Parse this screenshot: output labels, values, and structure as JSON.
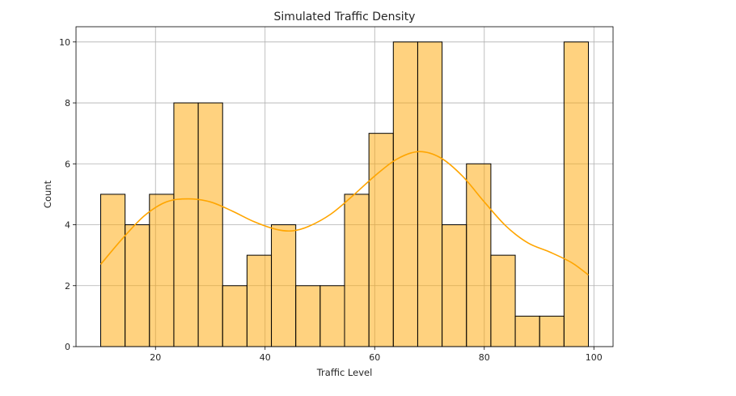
{
  "chart_data": {
    "type": "bar",
    "title": "Simulated Traffic Density",
    "xlabel": "Traffic Level",
    "ylabel": "Count",
    "xlim": [
      5.5,
      103.5
    ],
    "ylim": [
      0,
      10.5
    ],
    "xticks": [
      20,
      40,
      60,
      80,
      100
    ],
    "yticks": [
      0,
      2,
      4,
      6,
      8,
      10
    ],
    "grid": true,
    "bar_color": "#ffa500",
    "bar_fill_opacity": 0.5,
    "bar_edge_color": "#000000",
    "kde_color": "#ffa500",
    "bins": [
      {
        "x0": 10.0,
        "x1": 14.45,
        "count": 5
      },
      {
        "x0": 14.45,
        "x1": 18.9,
        "count": 4
      },
      {
        "x0": 18.9,
        "x1": 23.35,
        "count": 5
      },
      {
        "x0": 23.35,
        "x1": 27.8,
        "count": 8
      },
      {
        "x0": 27.8,
        "x1": 32.25,
        "count": 8
      },
      {
        "x0": 32.25,
        "x1": 36.7,
        "count": 2
      },
      {
        "x0": 36.7,
        "x1": 41.15,
        "count": 3
      },
      {
        "x0": 41.15,
        "x1": 45.6,
        "count": 4
      },
      {
        "x0": 45.6,
        "x1": 50.05,
        "count": 2
      },
      {
        "x0": 50.05,
        "x1": 54.5,
        "count": 2
      },
      {
        "x0": 54.5,
        "x1": 58.95,
        "count": 5
      },
      {
        "x0": 58.95,
        "x1": 63.4,
        "count": 7
      },
      {
        "x0": 63.4,
        "x1": 67.85,
        "count": 10
      },
      {
        "x0": 67.85,
        "x1": 72.3,
        "count": 10
      },
      {
        "x0": 72.3,
        "x1": 76.75,
        "count": 4
      },
      {
        "x0": 76.75,
        "x1": 81.2,
        "count": 6
      },
      {
        "x0": 81.2,
        "x1": 85.65,
        "count": 3
      },
      {
        "x0": 85.65,
        "x1": 90.1,
        "count": 1
      },
      {
        "x0": 90.1,
        "x1": 94.55,
        "count": 1
      },
      {
        "x0": 94.55,
        "x1": 99.0,
        "count": 10
      }
    ],
    "kde_curve": [
      [
        10,
        2.7
      ],
      [
        14,
        3.55
      ],
      [
        18,
        4.3
      ],
      [
        22,
        4.75
      ],
      [
        26,
        4.85
      ],
      [
        30,
        4.75
      ],
      [
        34,
        4.45
      ],
      [
        38,
        4.1
      ],
      [
        42,
        3.85
      ],
      [
        45,
        3.8
      ],
      [
        48,
        3.95
      ],
      [
        52,
        4.35
      ],
      [
        56,
        4.95
      ],
      [
        60,
        5.6
      ],
      [
        64,
        6.15
      ],
      [
        68,
        6.4
      ],
      [
        72,
        6.2
      ],
      [
        76,
        5.6
      ],
      [
        80,
        4.75
      ],
      [
        84,
        3.95
      ],
      [
        88,
        3.4
      ],
      [
        92,
        3.1
      ],
      [
        96,
        2.75
      ],
      [
        99,
        2.35
      ]
    ]
  }
}
